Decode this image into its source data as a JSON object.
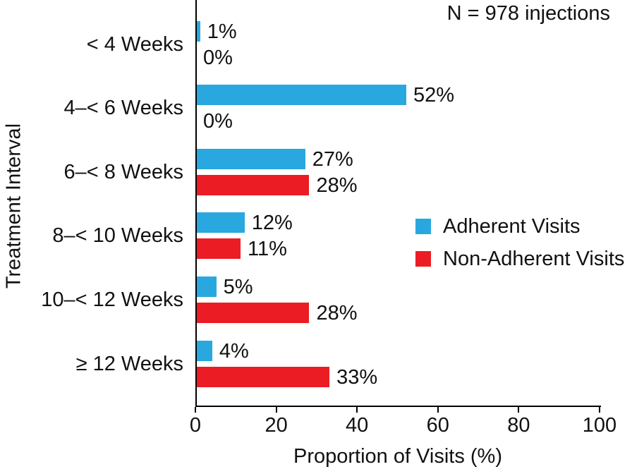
{
  "figure": {
    "annotation": "N = 978 injections"
  },
  "chart_data": {
    "type": "bar",
    "orientation": "horizontal",
    "title": "",
    "categories": [
      "< 4 Weeks",
      "4–< 6 Weeks",
      "6–< 8 Weeks",
      "8–< 10 Weeks",
      "10–< 12 Weeks",
      "≥ 12 Weeks"
    ],
    "series": [
      {
        "name": "Adherent Visits",
        "color": "#29A8E0",
        "values": [
          1,
          52,
          27,
          12,
          5,
          4
        ]
      },
      {
        "name": "Non-Adherent Visits",
        "color": "#EC1C24",
        "values": [
          0,
          0,
          28,
          11,
          28,
          33
        ]
      }
    ],
    "value_suffix": "%",
    "xlabel": "Proportion of Visits (%)",
    "ylabel": "Treatment Interval",
    "xlim": [
      0,
      100
    ],
    "xticks": [
      0,
      20,
      40,
      60,
      80,
      100
    ],
    "annotation": "N = 978 injections",
    "legend_position": "middle-right",
    "grid": false,
    "bar_color_text": "#111111",
    "axis_color": "#000000"
  }
}
